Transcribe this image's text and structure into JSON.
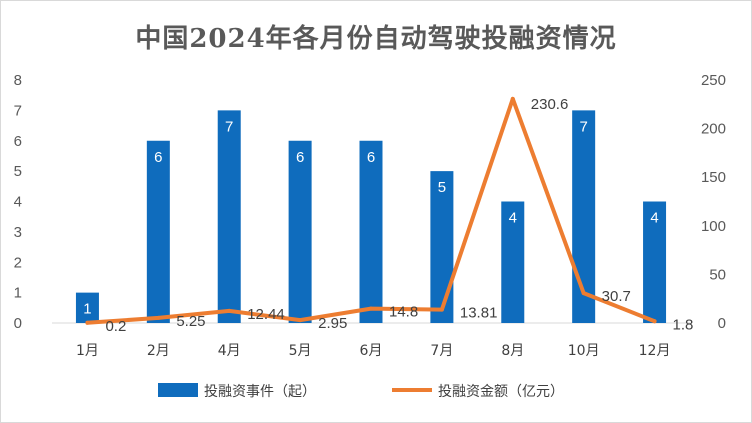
{
  "chart_data": {
    "type": "bar",
    "title": "中国2024年各月份自动驾驶投融资情况",
    "categories": [
      "1月",
      "2月",
      "4月",
      "5月",
      "6月",
      "7月",
      "8月",
      "10月",
      "12月"
    ],
    "series": [
      {
        "name": "投融资事件（起）",
        "type": "bar",
        "axis": "left",
        "color": "#0F6CBD",
        "values": [
          1,
          6,
          7,
          6,
          6,
          5,
          4,
          7,
          4
        ],
        "labels": [
          "1",
          "6",
          "7",
          "6",
          "6",
          "5",
          "4",
          "7",
          "4"
        ]
      },
      {
        "name": "投融资金额（亿元）",
        "type": "line",
        "axis": "right",
        "color": "#ED7D31",
        "values": [
          0.2,
          5.25,
          12.44,
          2.95,
          14.8,
          13.81,
          230.6,
          30.7,
          1.8
        ],
        "labels": [
          "0.2",
          "5.25",
          "12.44",
          "2.95",
          "14.8",
          "13.81",
          "230.6",
          "30.7",
          "1.8"
        ]
      }
    ],
    "ylim_left": [
      0,
      8
    ],
    "yticks_left": [
      "0",
      "1",
      "2",
      "3",
      "4",
      "5",
      "6",
      "7",
      "8"
    ],
    "ylim_right": [
      0,
      250
    ],
    "yticks_right": [
      "0",
      "50",
      "100",
      "150",
      "200",
      "250"
    ],
    "grid": false,
    "legend_position": "bottom"
  }
}
